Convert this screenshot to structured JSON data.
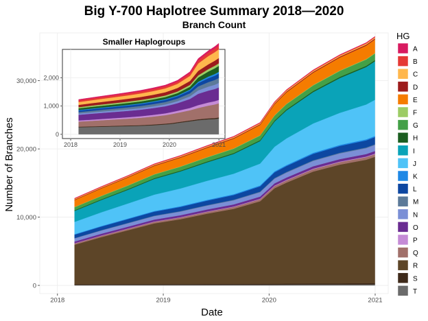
{
  "chart_data": [
    {
      "type": "area",
      "role": "main",
      "title": "Big Y-700 Haplotree Summary 2018—2020",
      "subtitle": "Branch Count",
      "xlabel": "Date",
      "ylabel": "Number of Branches",
      "x_tick_labels": [
        "2018",
        "2019",
        "2020",
        "2021"
      ],
      "y_tick_labels": [
        "0",
        "10,000",
        "20,000",
        "30,000"
      ],
      "y_ticks": [
        0,
        10000,
        20000,
        30000
      ],
      "x_ticks": [
        "2018-01-01",
        "2019-01-01",
        "2020-01-01",
        "2021-01-01"
      ],
      "xlim": [
        "2017-11-01",
        "2021-02-15"
      ],
      "ylim": [
        -1200,
        37000
      ],
      "stacked": true,
      "grid": true,
      "legend_position": "right",
      "dates": [
        "2018-03-01",
        "2018-06-01",
        "2018-09-01",
        "2018-12-01",
        "2019-03-01",
        "2019-06-01",
        "2019-09-01",
        "2019-12-01",
        "2020-01-20",
        "2020-03-01",
        "2020-06-01",
        "2020-09-01",
        "2020-12-01",
        "2020-12-31"
      ],
      "series": [
        {
          "name": "T",
          "values": [
            60,
            65,
            70,
            75,
            80,
            85,
            90,
            95,
            100,
            110,
            120,
            130,
            140,
            150
          ]
        },
        {
          "name": "S",
          "values": [
            100,
            105,
            110,
            115,
            120,
            125,
            130,
            135,
            140,
            150,
            160,
            170,
            180,
            190
          ]
        },
        {
          "name": "R",
          "values": [
            5800,
            6900,
            7900,
            8900,
            9500,
            10300,
            11000,
            12100,
            14000,
            14800,
            16400,
            17400,
            18100,
            18500
          ]
        },
        {
          "name": "Q",
          "values": [
            180,
            195,
            210,
            225,
            240,
            260,
            280,
            300,
            320,
            330,
            350,
            370,
            380,
            390
          ]
        },
        {
          "name": "P",
          "values": [
            40,
            42,
            45,
            48,
            50,
            55,
            60,
            65,
            70,
            72,
            75,
            78,
            80,
            82
          ]
        },
        {
          "name": "O",
          "values": [
            250,
            260,
            270,
            280,
            290,
            300,
            310,
            320,
            330,
            340,
            350,
            360,
            370,
            380
          ]
        },
        {
          "name": "N",
          "values": [
            450,
            470,
            490,
            510,
            530,
            560,
            600,
            640,
            680,
            720,
            780,
            830,
            860,
            880
          ]
        },
        {
          "name": "M",
          "values": [
            50,
            55,
            60,
            65,
            70,
            75,
            80,
            85,
            90,
            92,
            95,
            98,
            100,
            102
          ]
        },
        {
          "name": "L",
          "values": [
            500,
            530,
            560,
            590,
            620,
            660,
            700,
            780,
            850,
            880,
            950,
            1000,
            1040,
            1060
          ]
        },
        {
          "name": "K",
          "values": [
            80,
            85,
            90,
            95,
            100,
            110,
            120,
            130,
            140,
            145,
            150,
            155,
            160,
            162
          ]
        },
        {
          "name": "J",
          "values": [
            1800,
            2000,
            2200,
            2400,
            2600,
            2800,
            3000,
            3200,
            3600,
            3900,
            4300,
            4700,
            5100,
            5300
          ]
        },
        {
          "name": "I",
          "values": [
            1600,
            1800,
            2000,
            2300,
            2500,
            2700,
            2900,
            3300,
            3700,
            4100,
            4600,
            5100,
            5500,
            5650
          ]
        },
        {
          "name": "H",
          "values": [
            100,
            105,
            110,
            115,
            120,
            125,
            130,
            140,
            150,
            155,
            160,
            165,
            170,
            172
          ]
        },
        {
          "name": "G",
          "values": [
            450,
            480,
            510,
            540,
            570,
            600,
            630,
            670,
            720,
            760,
            820,
            880,
            930,
            960
          ]
        },
        {
          "name": "F",
          "values": [
            40,
            42,
            44,
            46,
            48,
            50,
            52,
            54,
            56,
            58,
            60,
            62,
            64,
            65
          ]
        },
        {
          "name": "E",
          "values": [
            1000,
            1070,
            1140,
            1210,
            1280,
            1350,
            1420,
            1500,
            1600,
            1680,
            1800,
            1900,
            1970,
            2000
          ]
        },
        {
          "name": "D",
          "values": [
            80,
            85,
            90,
            95,
            100,
            105,
            110,
            115,
            120,
            125,
            130,
            135,
            140,
            142
          ]
        },
        {
          "name": "C",
          "values": [
            100,
            105,
            110,
            115,
            120,
            125,
            130,
            135,
            140,
            145,
            150,
            155,
            160,
            162
          ]
        },
        {
          "name": "B",
          "values": [
            60,
            62,
            64,
            66,
            68,
            70,
            72,
            74,
            76,
            78,
            80,
            82,
            84,
            85
          ]
        },
        {
          "name": "A",
          "values": [
            30,
            32,
            34,
            36,
            38,
            40,
            42,
            44,
            46,
            48,
            50,
            52,
            54,
            55
          ]
        }
      ]
    },
    {
      "type": "area",
      "role": "inset",
      "title": "Smaller Haplogroups",
      "x_tick_labels": [
        "2018",
        "2019",
        "2020",
        "2021"
      ],
      "y_tick_labels": [
        "0",
        "1,000",
        "2,000"
      ],
      "y_ticks": [
        0,
        1000,
        2000
      ],
      "x_ticks": [
        "2018-01-01",
        "2019-01-01",
        "2020-01-01",
        "2021-01-01"
      ],
      "xlim": [
        "2017-11-01",
        "2021-02-15"
      ],
      "ylim": [
        -150,
        3000
      ],
      "stacked": true,
      "grid": true,
      "dates": [
        "2018-03-01",
        "2018-06-01",
        "2018-09-01",
        "2018-12-01",
        "2019-03-01",
        "2019-06-01",
        "2019-09-01",
        "2019-12-01",
        "2020-01-20",
        "2020-03-01",
        "2020-06-01",
        "2020-08-01",
        "2020-10-15",
        "2020-12-01",
        "2020-12-31"
      ],
      "series": [
        {
          "name": "T",
          "values": [
            250,
            260,
            270,
            280,
            290,
            300,
            320,
            350,
            370,
            400,
            460,
            500,
            530,
            540,
            560
          ]
        },
        {
          "name": "S",
          "values": [
            20,
            20,
            22,
            22,
            24,
            24,
            26,
            26,
            28,
            28,
            30,
            32,
            34,
            35,
            35
          ]
        },
        {
          "name": "Q",
          "values": [
            180,
            195,
            210,
            225,
            240,
            260,
            280,
            300,
            320,
            330,
            360,
            400,
            450,
            480,
            500
          ]
        },
        {
          "name": "P",
          "values": [
            40,
            42,
            45,
            48,
            50,
            55,
            60,
            65,
            70,
            72,
            80,
            100,
            110,
            115,
            120
          ]
        },
        {
          "name": "O",
          "values": [
            200,
            210,
            215,
            220,
            225,
            230,
            240,
            250,
            260,
            270,
            320,
            400,
            420,
            430,
            440
          ]
        },
        {
          "name": "N",
          "values": [
            45,
            47,
            49,
            51,
            53,
            56,
            60,
            64,
            68,
            72,
            90,
            120,
            140,
            150,
            160
          ]
        },
        {
          "name": "M",
          "values": [
            50,
            55,
            60,
            65,
            70,
            75,
            80,
            85,
            90,
            92,
            110,
            140,
            160,
            170,
            175
          ]
        },
        {
          "name": "L",
          "values": [
            55,
            58,
            60,
            62,
            65,
            68,
            70,
            75,
            80,
            82,
            95,
            120,
            140,
            150,
            155
          ]
        },
        {
          "name": "K",
          "values": [
            20,
            21,
            22,
            23,
            24,
            25,
            26,
            27,
            28,
            29,
            35,
            45,
            55,
            60,
            62
          ]
        },
        {
          "name": "H",
          "values": [
            60,
            62,
            64,
            66,
            68,
            70,
            72,
            75,
            78,
            80,
            100,
            150,
            180,
            200,
            210
          ]
        },
        {
          "name": "F",
          "values": [
            40,
            42,
            44,
            46,
            48,
            50,
            52,
            54,
            56,
            58,
            65,
            75,
            85,
            90,
            92
          ]
        },
        {
          "name": "D",
          "values": [
            80,
            85,
            90,
            95,
            100,
            105,
            110,
            115,
            120,
            125,
            140,
            160,
            170,
            180,
            185
          ]
        },
        {
          "name": "C",
          "values": [
            100,
            105,
            110,
            115,
            120,
            125,
            130,
            135,
            140,
            145,
            180,
            260,
            290,
            300,
            310
          ]
        },
        {
          "name": "B",
          "values": [
            60,
            62,
            64,
            66,
            68,
            70,
            72,
            74,
            76,
            78,
            90,
            110,
            120,
            125,
            130
          ]
        },
        {
          "name": "A",
          "values": [
            30,
            32,
            34,
            36,
            38,
            40,
            42,
            44,
            46,
            48,
            55,
            65,
            70,
            75,
            80
          ]
        }
      ]
    }
  ],
  "legend": {
    "title": "HG",
    "items": [
      {
        "name": "A",
        "color": "#d81b60"
      },
      {
        "name": "B",
        "color": "#e53935"
      },
      {
        "name": "C",
        "color": "#ffb74d"
      },
      {
        "name": "D",
        "color": "#9c1c1c"
      },
      {
        "name": "E",
        "color": "#f57c00"
      },
      {
        "name": "F",
        "color": "#9ccc65"
      },
      {
        "name": "G",
        "color": "#43a047"
      },
      {
        "name": "H",
        "color": "#1b5e20"
      },
      {
        "name": "I",
        "color": "#0aa3b8"
      },
      {
        "name": "J",
        "color": "#4fc3f7"
      },
      {
        "name": "K",
        "color": "#1e88e5"
      },
      {
        "name": "L",
        "color": "#0d47a1"
      },
      {
        "name": "M",
        "color": "#5c7a99"
      },
      {
        "name": "N",
        "color": "#7b8fd6"
      },
      {
        "name": "O",
        "color": "#6a2c91"
      },
      {
        "name": "P",
        "color": "#c58bd6"
      },
      {
        "name": "Q",
        "color": "#a1706a"
      },
      {
        "name": "R",
        "color": "#5d4528"
      },
      {
        "name": "S",
        "color": "#3e2a1a"
      },
      {
        "name": "T",
        "color": "#6b6b6b"
      }
    ]
  }
}
